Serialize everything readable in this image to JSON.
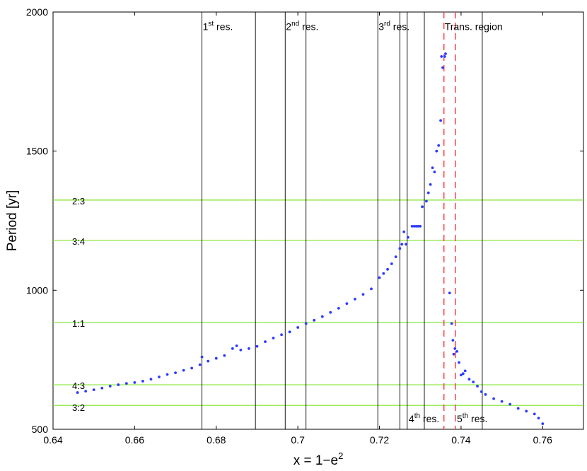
{
  "chart_data": {
    "type": "scatter",
    "xlabel": "x = 1−e",
    "xlabel_sup": "2",
    "ylabel": "Period [yr]",
    "xlim": [
      0.64,
      0.77
    ],
    "ylim": [
      500,
      2000
    ],
    "xticks": [
      0.64,
      0.66,
      0.68,
      0.7,
      0.72,
      0.74,
      0.76
    ],
    "xtick_labels": [
      "0.64",
      "0.66",
      "0.68",
      "0.7",
      "0.72",
      "0.74",
      "0.76"
    ],
    "yticks": [
      500,
      1000,
      1500,
      2000
    ],
    "ytick_labels": [
      "500",
      "1000",
      "1500",
      "2000"
    ],
    "colors": {
      "points": "#2b3cff",
      "resonance_lines": "#000000",
      "ratio_lines": "#7fe52a",
      "transition_lines": "#ff4040"
    },
    "horizontal_lines": [
      {
        "y": 1324,
        "label": "2:3"
      },
      {
        "y": 1179,
        "label": "3:4"
      },
      {
        "y": 884,
        "label": "1:1"
      },
      {
        "y": 660,
        "label": "4:3"
      },
      {
        "y": 586,
        "label": "3:2"
      }
    ],
    "vertical_lines": [
      0.6765,
      0.6896,
      0.6969,
      0.702,
      0.7196,
      0.725,
      0.7268,
      0.731,
      0.7452
    ],
    "dashed_lines": [
      0.7358,
      0.7386
    ],
    "annotations": [
      {
        "text": "1",
        "sup": "st",
        "rest": " res.",
        "x": 0.6765,
        "y": 1945
      },
      {
        "text": "2",
        "sup": "nd",
        "rest": " res.",
        "x": 0.6969,
        "y": 1945
      },
      {
        "text": "3",
        "sup": "rd",
        "rest": " res.",
        "x": 0.7196,
        "y": 1945
      },
      {
        "text": "",
        "sup": "",
        "rest": "Trans. region",
        "x": 0.7358,
        "y": 1945
      },
      {
        "text": "4",
        "sup": "th",
        "rest": " res.",
        "x": 0.727,
        "y": 535
      },
      {
        "text": "5",
        "sup": "th",
        "rest": " res.",
        "x": 0.7388,
        "y": 535
      }
    ],
    "x": [
      0.646,
      0.648,
      0.65,
      0.652,
      0.654,
      0.656,
      0.658,
      0.66,
      0.662,
      0.664,
      0.666,
      0.668,
      0.67,
      0.672,
      0.674,
      0.676,
      0.6765,
      0.678,
      0.68,
      0.682,
      0.684,
      0.685,
      0.686,
      0.688,
      0.69,
      0.692,
      0.694,
      0.696,
      0.698,
      0.7,
      0.702,
      0.704,
      0.706,
      0.708,
      0.71,
      0.712,
      0.714,
      0.716,
      0.718,
      0.72,
      0.721,
      0.722,
      0.723,
      0.724,
      0.725,
      0.7255,
      0.726,
      0.7265,
      0.727,
      0.728,
      0.7285,
      0.729,
      0.7295,
      0.73,
      0.7305,
      0.7315,
      0.732,
      0.7325,
      0.733,
      0.7335,
      0.734,
      0.7345,
      0.735,
      0.7352,
      0.7355,
      0.736,
      0.7362,
      0.7372,
      0.7377,
      0.738,
      0.7382,
      0.7385,
      0.739,
      0.7395,
      0.74,
      0.7405,
      0.741,
      0.742,
      0.743,
      0.744,
      0.745,
      0.746,
      0.748,
      0.75,
      0.752,
      0.754,
      0.756,
      0.758,
      0.759,
      0.76
    ],
    "y": [
      632,
      637,
      642,
      648,
      655,
      660,
      665,
      668,
      673,
      680,
      688,
      697,
      703,
      712,
      720,
      732,
      760,
      745,
      755,
      765,
      790,
      800,
      785,
      790,
      798,
      815,
      828,
      840,
      850,
      866,
      880,
      892,
      905,
      920,
      935,
      952,
      968,
      985,
      1005,
      1045,
      1060,
      1075,
      1095,
      1120,
      1150,
      1165,
      1210,
      1165,
      1190,
      1230,
      1230,
      1230,
      1230,
      1230,
      1300,
      1320,
      1350,
      1380,
      1440,
      1425,
      1500,
      1520,
      1610,
      1840,
      1800,
      1840,
      1850,
      990,
      880,
      820,
      770,
      790,
      780,
      740,
      695,
      700,
      710,
      680,
      670,
      655,
      635,
      625,
      610,
      600,
      590,
      575,
      565,
      555,
      540,
      520
    ]
  }
}
